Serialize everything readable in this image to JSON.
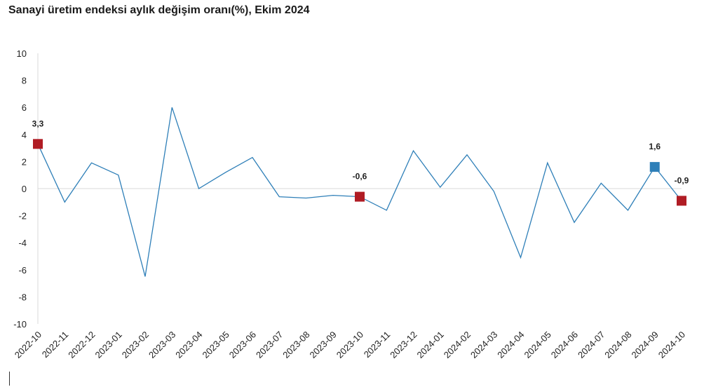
{
  "chart_data": {
    "type": "line",
    "title": "Sanayi üretim endeksi aylık değişim oranı(%), Ekim 2024",
    "xlabel": "",
    "ylabel": "",
    "ylim": [
      -10,
      10
    ],
    "yticks": [
      10,
      8,
      6,
      4,
      2,
      0,
      -2,
      -4,
      -6,
      -8,
      -10
    ],
    "grid": false,
    "categories": [
      "2022-10",
      "2022-11",
      "2022-12",
      "2023-01",
      "2023-02",
      "2023-03",
      "2023-04",
      "2023-05",
      "2023-06",
      "2023-07",
      "2023-08",
      "2023-09",
      "2023-10",
      "2023-11",
      "2023-12",
      "2024-01",
      "2024-02",
      "2024-03",
      "2024-04",
      "2024-05",
      "2024-06",
      "2024-07",
      "2024-08",
      "2024-09",
      "2024-10"
    ],
    "series": [
      {
        "values": [
          3.3,
          -1.0,
          1.9,
          1.0,
          -6.5,
          6.0,
          0.0,
          1.2,
          2.3,
          -0.6,
          -0.7,
          -0.5,
          -0.6,
          -1.6,
          2.8,
          0.1,
          2.5,
          -0.2,
          -5.1,
          1.9,
          -2.5,
          0.4,
          -1.6,
          1.6,
          -0.9
        ],
        "color": "#2e7fb8"
      }
    ],
    "highlights": [
      {
        "index": 0,
        "label": "3,3",
        "color": "#b01c24"
      },
      {
        "index": 12,
        "label": "-0,6",
        "color": "#b01c24"
      },
      {
        "index": 23,
        "label": "1,6",
        "color": "#2e7fb8"
      },
      {
        "index": 24,
        "label": "-0,9",
        "color": "#b01c24"
      }
    ]
  }
}
